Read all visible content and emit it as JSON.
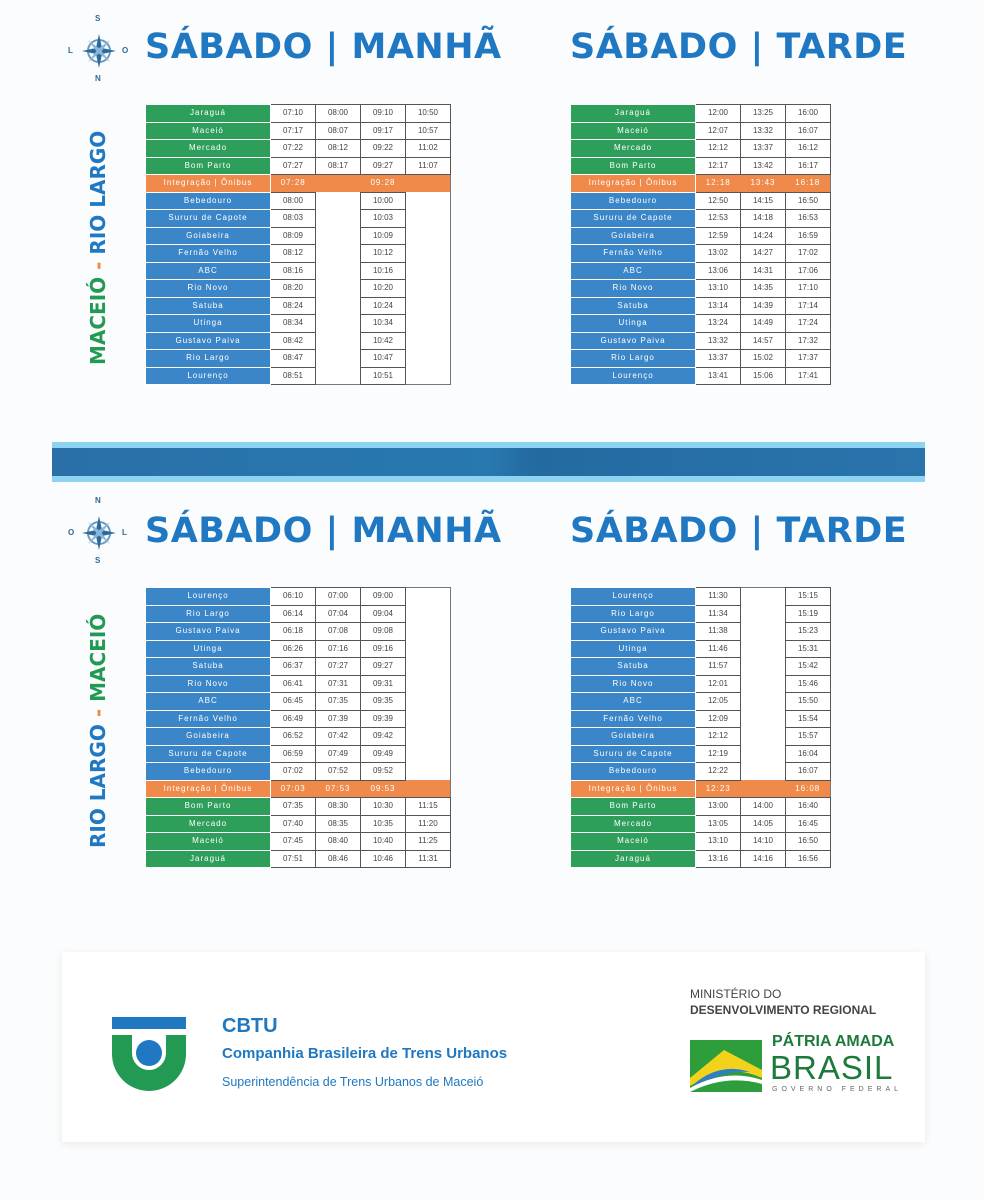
{
  "colors": {
    "brand_blue": "#1f78c1",
    "station_green": "#2e9e5b",
    "station_blue": "#3a86c8",
    "integration_orange": "#f08a4b"
  },
  "sections": [
    {
      "route": {
        "from": "MACEIÓ",
        "sep": "-",
        "to": "RIO LARGO"
      },
      "compass": {
        "top": "S",
        "bottom": "N",
        "left": "L",
        "right": "O"
      },
      "schedules": [
        {
          "title": "SÁBADO | MANHÃ",
          "rows": [
            {
              "station": "Jaraguá",
              "kind": "green",
              "times": [
                "07:10",
                "08:00",
                "09:10",
                "10:50"
              ]
            },
            {
              "station": "Maceió",
              "kind": "green",
              "times": [
                "07:17",
                "08:07",
                "09:17",
                "10:57"
              ]
            },
            {
              "station": "Mercado",
              "kind": "green",
              "times": [
                "07:22",
                "08:12",
                "09:22",
                "11:02"
              ]
            },
            {
              "station": "Bom Parto",
              "kind": "green",
              "times": [
                "07:27",
                "08:17",
                "09:27",
                "11:07"
              ]
            },
            {
              "station": "Integração | Ônibus",
              "kind": "orange",
              "times": [
                "07:28",
                null,
                "09:28",
                null
              ]
            },
            {
              "station": "Bebedouro",
              "kind": "blue",
              "times": [
                "08:00",
                null,
                "10:00",
                null
              ]
            },
            {
              "station": "Sururu de Capote",
              "kind": "blue",
              "times": [
                "08:03",
                null,
                "10:03",
                null
              ]
            },
            {
              "station": "Goiabeira",
              "kind": "blue",
              "times": [
                "08:09",
                null,
                "10:09",
                null
              ]
            },
            {
              "station": "Fernão Velho",
              "kind": "blue",
              "times": [
                "08:12",
                null,
                "10:12",
                null
              ]
            },
            {
              "station": "ABC",
              "kind": "blue",
              "times": [
                "08:16",
                null,
                "10:16",
                null
              ]
            },
            {
              "station": "Rio Novo",
              "kind": "blue",
              "times": [
                "08:20",
                null,
                "10:20",
                null
              ]
            },
            {
              "station": "Satuba",
              "kind": "blue",
              "times": [
                "08:24",
                null,
                "10:24",
                null
              ]
            },
            {
              "station": "Utinga",
              "kind": "blue",
              "times": [
                "08:34",
                null,
                "10:34",
                null
              ]
            },
            {
              "station": "Gustavo Paiva",
              "kind": "blue",
              "times": [
                "08:42",
                null,
                "10:42",
                null
              ]
            },
            {
              "station": "Rio Largo",
              "kind": "blue",
              "times": [
                "08:47",
                null,
                "10:47",
                null
              ]
            },
            {
              "station": "Lourenço",
              "kind": "blue",
              "times": [
                "08:51",
                null,
                "10:51",
                null
              ]
            }
          ]
        },
        {
          "title": "SÁBADO | TARDE",
          "rows": [
            {
              "station": "Jaraguá",
              "kind": "green",
              "times": [
                "12:00",
                "13:25",
                "16:00"
              ]
            },
            {
              "station": "Maceió",
              "kind": "green",
              "times": [
                "12:07",
                "13:32",
                "16:07"
              ]
            },
            {
              "station": "Mercado",
              "kind": "green",
              "times": [
                "12:12",
                "13:37",
                "16:12"
              ]
            },
            {
              "station": "Bom Parto",
              "kind": "green",
              "times": [
                "12:17",
                "13:42",
                "16:17"
              ]
            },
            {
              "station": "Integração | Ônibus",
              "kind": "orange",
              "times": [
                "12:18",
                "13:43",
                "16:18"
              ]
            },
            {
              "station": "Bebedouro",
              "kind": "blue",
              "times": [
                "12:50",
                "14:15",
                "16:50"
              ]
            },
            {
              "station": "Sururu de Capote",
              "kind": "blue",
              "times": [
                "12:53",
                "14:18",
                "16:53"
              ]
            },
            {
              "station": "Goiabeira",
              "kind": "blue",
              "times": [
                "12:59",
                "14:24",
                "16:59"
              ]
            },
            {
              "station": "Fernão Velho",
              "kind": "blue",
              "times": [
                "13:02",
                "14:27",
                "17:02"
              ]
            },
            {
              "station": "ABC",
              "kind": "blue",
              "times": [
                "13:06",
                "14:31",
                "17:06"
              ]
            },
            {
              "station": "Rio Novo",
              "kind": "blue",
              "times": [
                "13:10",
                "14:35",
                "17:10"
              ]
            },
            {
              "station": "Satuba",
              "kind": "blue",
              "times": [
                "13:14",
                "14:39",
                "17:14"
              ]
            },
            {
              "station": "Utinga",
              "kind": "blue",
              "times": [
                "13:24",
                "14:49",
                "17:24"
              ]
            },
            {
              "station": "Gustavo Paiva",
              "kind": "blue",
              "times": [
                "13:32",
                "14:57",
                "17:32"
              ]
            },
            {
              "station": "Rio Largo",
              "kind": "blue",
              "times": [
                "13:37",
                "15:02",
                "17:37"
              ]
            },
            {
              "station": "Lourenço",
              "kind": "blue",
              "times": [
                "13:41",
                "15:06",
                "17:41"
              ]
            }
          ]
        }
      ]
    },
    {
      "route": {
        "from": "RIO LARGO",
        "sep": "-",
        "to": "MACEIÓ"
      },
      "compass": {
        "top": "N",
        "bottom": "S",
        "left": "O",
        "right": "L"
      },
      "schedules": [
        {
          "title": "SÁBADO | MANHÃ",
          "rows": [
            {
              "station": "Lourenço",
              "kind": "blue",
              "times": [
                "06:10",
                "07:00",
                "09:00",
                null
              ]
            },
            {
              "station": "Rio Largo",
              "kind": "blue",
              "times": [
                "06:14",
                "07:04",
                "09:04",
                null
              ]
            },
            {
              "station": "Gustavo Paiva",
              "kind": "blue",
              "times": [
                "06:18",
                "07:08",
                "09:08",
                null
              ]
            },
            {
              "station": "Utinga",
              "kind": "blue",
              "times": [
                "06:26",
                "07:16",
                "09:16",
                null
              ]
            },
            {
              "station": "Satuba",
              "kind": "blue",
              "times": [
                "06:37",
                "07:27",
                "09:27",
                null
              ]
            },
            {
              "station": "Rio Novo",
              "kind": "blue",
              "times": [
                "06:41",
                "07:31",
                "09:31",
                null
              ]
            },
            {
              "station": "ABC",
              "kind": "blue",
              "times": [
                "06:45",
                "07:35",
                "09:35",
                null
              ]
            },
            {
              "station": "Fernão Velho",
              "kind": "blue",
              "times": [
                "06:49",
                "07:39",
                "09:39",
                null
              ]
            },
            {
              "station": "Goiabeira",
              "kind": "blue",
              "times": [
                "06:52",
                "07:42",
                "09:42",
                null
              ]
            },
            {
              "station": "Sururu de Capote",
              "kind": "blue",
              "times": [
                "06:59",
                "07:49",
                "09:49",
                null
              ]
            },
            {
              "station": "Bebedouro",
              "kind": "blue",
              "times": [
                "07:02",
                "07:52",
                "09:52",
                null
              ]
            },
            {
              "station": "Integração | Ônibus",
              "kind": "orange",
              "times": [
                "07:03",
                "07:53",
                "09:53",
                null
              ]
            },
            {
              "station": "Bom Parto",
              "kind": "green",
              "times": [
                "07:35",
                "08:30",
                "10:30",
                "11:15"
              ]
            },
            {
              "station": "Mercado",
              "kind": "green",
              "times": [
                "07:40",
                "08:35",
                "10:35",
                "11:20"
              ]
            },
            {
              "station": "Maceió",
              "kind": "green",
              "times": [
                "07:45",
                "08:40",
                "10:40",
                "11:25"
              ]
            },
            {
              "station": "Jaraguá",
              "kind": "green",
              "times": [
                "07:51",
                "08:46",
                "10:46",
                "11:31"
              ]
            }
          ]
        },
        {
          "title": "SÁBADO | TARDE",
          "rows": [
            {
              "station": "Lourenço",
              "kind": "blue",
              "times": [
                "11:30",
                null,
                "15:15"
              ]
            },
            {
              "station": "Rio Largo",
              "kind": "blue",
              "times": [
                "11:34",
                null,
                "15:19"
              ]
            },
            {
              "station": "Gustavo Paiva",
              "kind": "blue",
              "times": [
                "11:38",
                null,
                "15:23"
              ]
            },
            {
              "station": "Utinga",
              "kind": "blue",
              "times": [
                "11:46",
                null,
                "15:31"
              ]
            },
            {
              "station": "Satuba",
              "kind": "blue",
              "times": [
                "11:57",
                null,
                "15:42"
              ]
            },
            {
              "station": "Rio Novo",
              "kind": "blue",
              "times": [
                "12:01",
                null,
                "15:46"
              ]
            },
            {
              "station": "ABC",
              "kind": "blue",
              "times": [
                "12:05",
                null,
                "15:50"
              ]
            },
            {
              "station": "Fernão Velho",
              "kind": "blue",
              "times": [
                "12:09",
                null,
                "15:54"
              ]
            },
            {
              "station": "Goiabeira",
              "kind": "blue",
              "times": [
                "12:12",
                null,
                "15:57"
              ]
            },
            {
              "station": "Sururu de Capote",
              "kind": "blue",
              "times": [
                "12:19",
                null,
                "16:04"
              ]
            },
            {
              "station": "Bebedouro",
              "kind": "blue",
              "times": [
                "12:22",
                null,
                "16:07"
              ]
            },
            {
              "station": "Integração | Ônibus",
              "kind": "orange",
              "times": [
                "12:23",
                null,
                "16:08"
              ]
            },
            {
              "station": "Bom Parto",
              "kind": "green",
              "times": [
                "13:00",
                "14:00",
                "16:40"
              ]
            },
            {
              "station": "Mercado",
              "kind": "green",
              "times": [
                "13:05",
                "14:05",
                "16:45"
              ]
            },
            {
              "station": "Maceió",
              "kind": "green",
              "times": [
                "13:10",
                "14:10",
                "16:50"
              ]
            },
            {
              "station": "Jaraguá",
              "kind": "green",
              "times": [
                "13:16",
                "14:16",
                "16:56"
              ]
            }
          ]
        }
      ]
    }
  ],
  "footer": {
    "cbtu": {
      "name": "CBTU",
      "full_name": "Companhia Brasileira de Trens Urbanos",
      "subtitle": "Superintendência de Trens Urbanos de Maceió"
    },
    "ministry": {
      "line1": "MINISTÉRIO DO",
      "line2": "DESENVOLVIMENTO REGIONAL"
    },
    "government": {
      "slogan": "PÁTRIA AMADA",
      "country": "BRASIL",
      "label": "GOVERNO FEDERAL"
    }
  }
}
